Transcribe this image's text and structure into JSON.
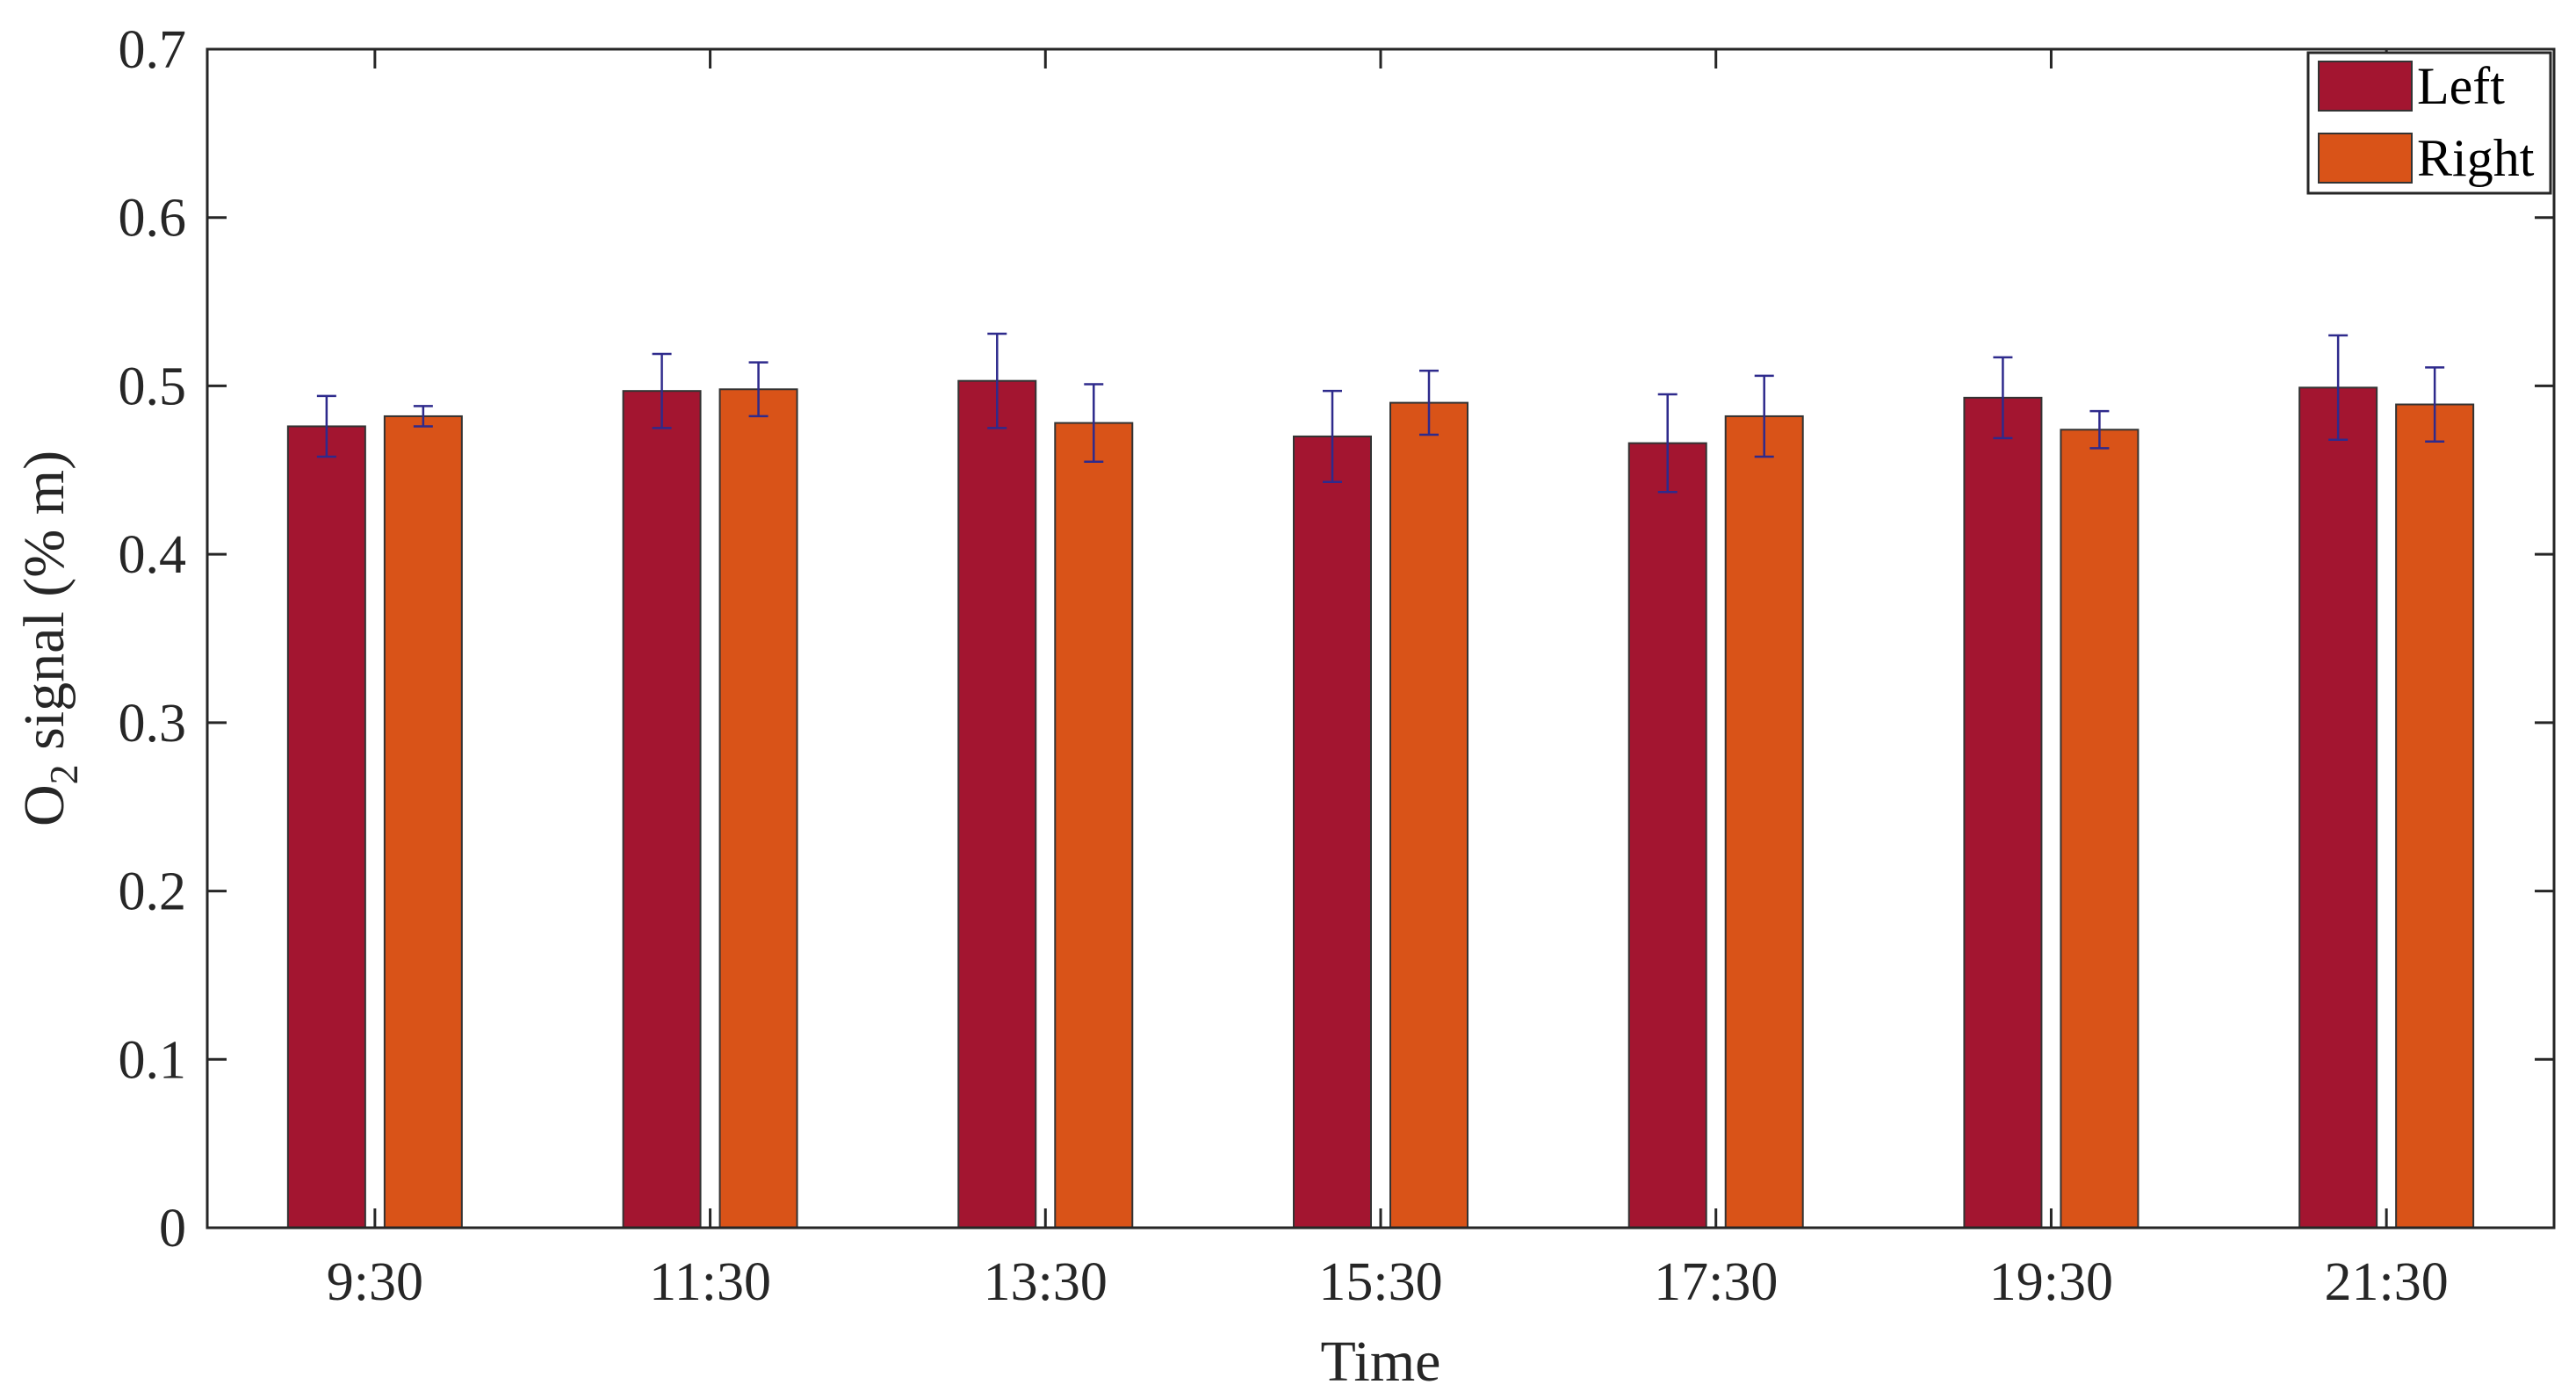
{
  "chart_data": {
    "type": "bar",
    "categories": [
      "9:30",
      "11:30",
      "13:30",
      "15:30",
      "17:30",
      "19:30",
      "21:30"
    ],
    "series": [
      {
        "name": "Left",
        "color": "#A31530",
        "values": [
          0.476,
          0.497,
          0.503,
          0.47,
          0.466,
          0.493,
          0.499
        ],
        "errors": [
          0.018,
          0.022,
          0.028,
          0.027,
          0.029,
          0.024,
          0.031
        ]
      },
      {
        "name": "Right",
        "color": "#D95318",
        "values": [
          0.482,
          0.498,
          0.478,
          0.49,
          0.482,
          0.474,
          0.489
        ],
        "errors": [
          0.006,
          0.016,
          0.023,
          0.019,
          0.024,
          0.011,
          0.022
        ]
      }
    ],
    "xlabel": "Time",
    "ylabel_main": "O",
    "ylabel_sub": "2",
    "ylabel_rest": " signal (% m)",
    "ylim": [
      0,
      0.7
    ],
    "yticks": [
      "0",
      "0.1",
      "0.2",
      "0.3",
      "0.4",
      "0.5",
      "0.6",
      "0.7"
    ],
    "grid": false,
    "legend_position": "top-right",
    "error_bar_color": "#2E2A8C"
  }
}
